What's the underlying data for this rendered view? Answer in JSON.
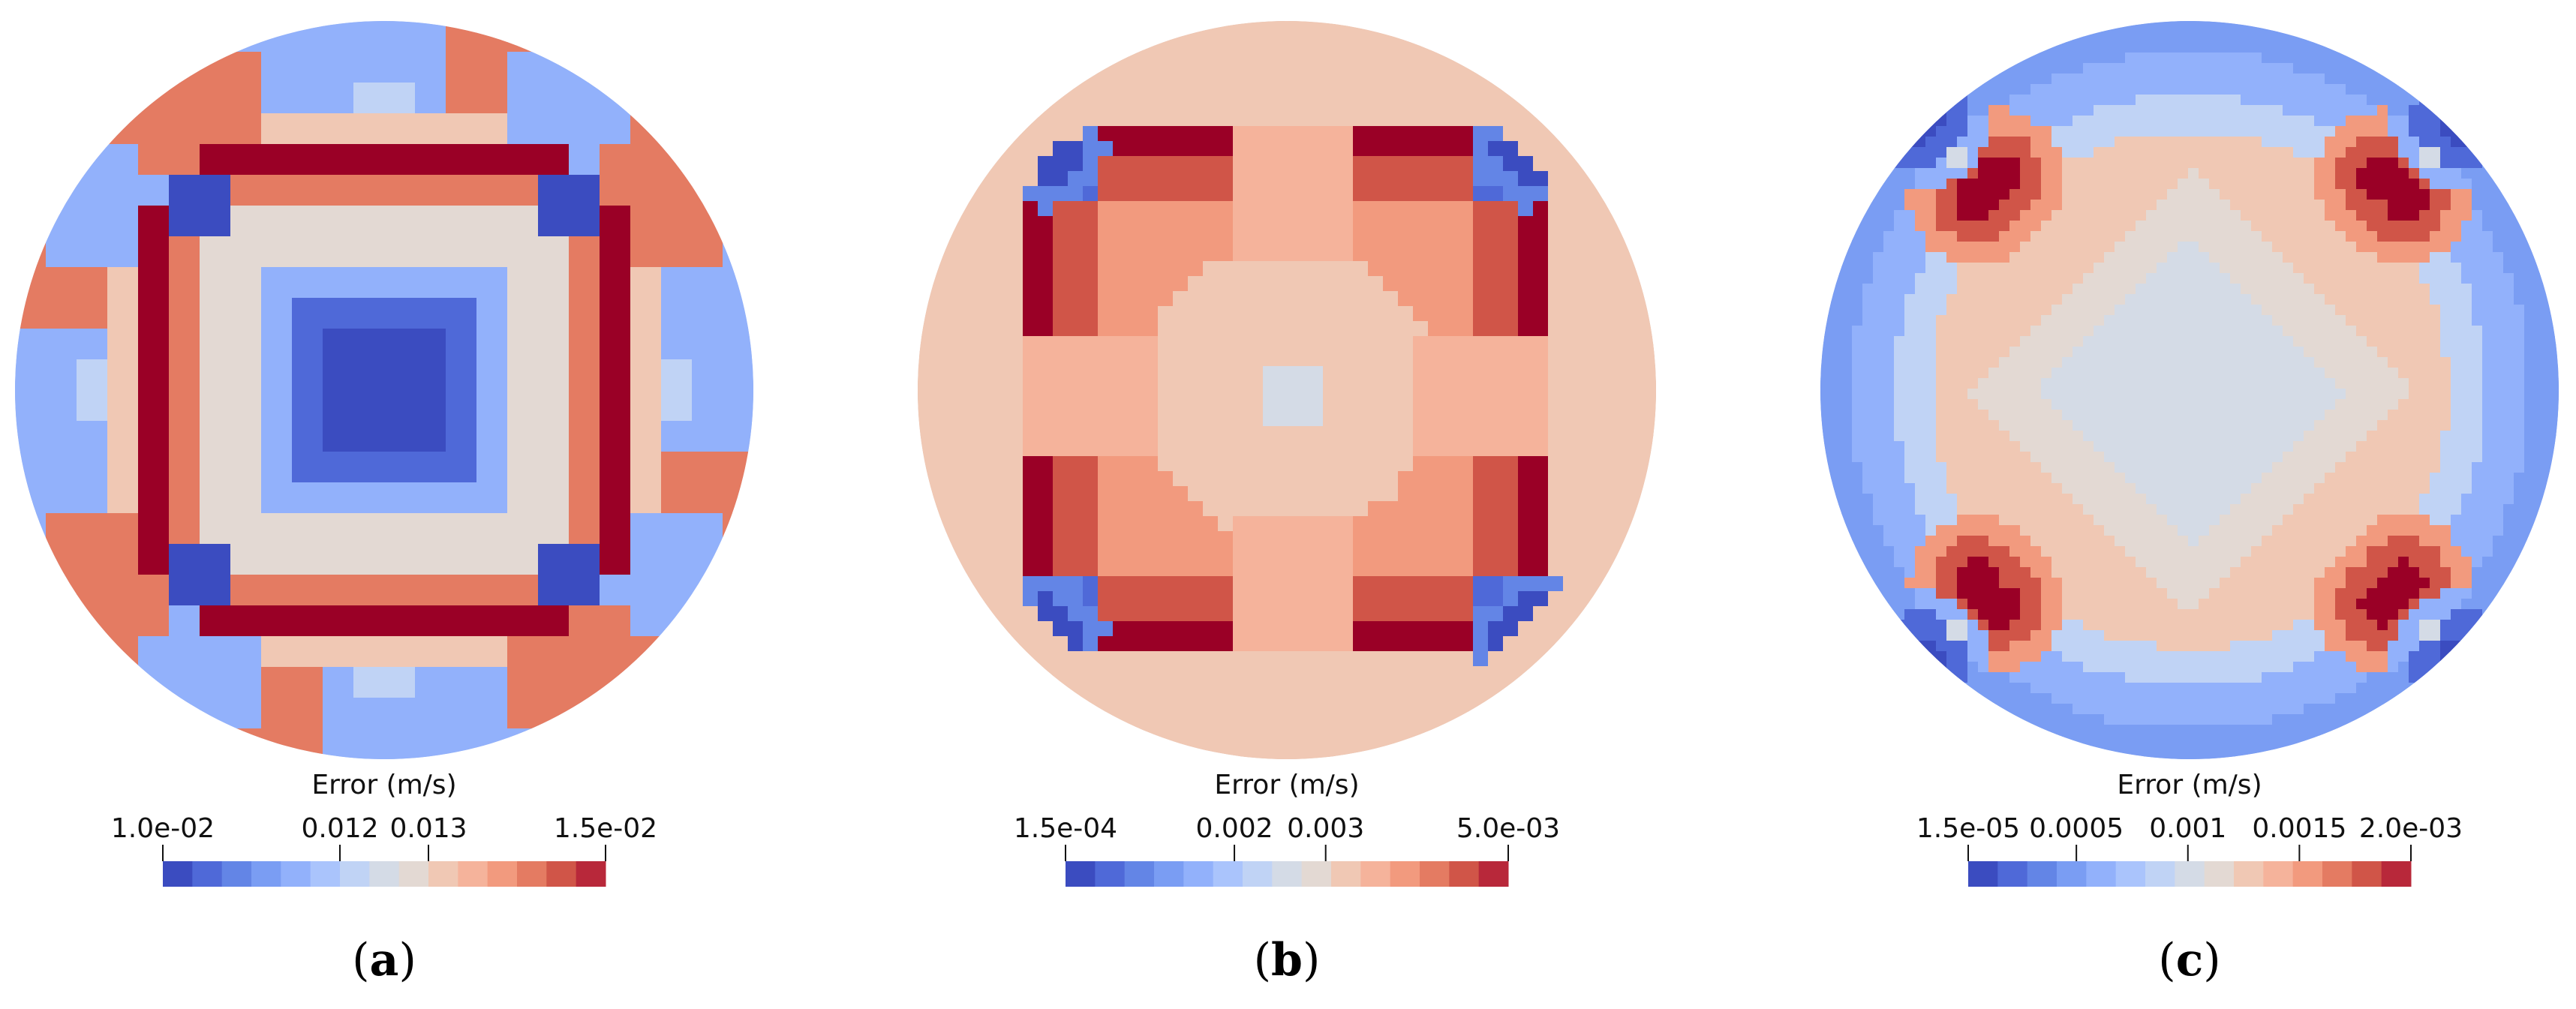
{
  "colors": {
    "palette": [
      "#3b4cc0",
      "#4f69d8",
      "#6385e6",
      "#7a9df3",
      "#92b1fb",
      "#aac4fc",
      "#c0d3f5",
      "#d4dbe6",
      "#e3d9d3",
      "#f0c8b4",
      "#f5b39b",
      "#f29a7e",
      "#e47b62",
      "#d05548",
      "#b8283a",
      "#9a0026"
    ]
  },
  "chart_data": [
    {
      "type": "heatmap",
      "panel_label": "a",
      "colorbar": {
        "title": "Error (m/s)",
        "range": [
          0.01,
          0.015
        ],
        "tick_labels": [
          "1.0e-02",
          "0.012",
          "0.013",
          "1.5e-02"
        ],
        "tick_values": [
          0.01,
          0.012,
          0.013,
          0.015
        ],
        "n_colors": 15
      }
    },
    {
      "type": "heatmap",
      "panel_label": "b",
      "colorbar": {
        "title": "Error (m/s)",
        "range": [
          0.00015,
          0.005
        ],
        "tick_labels": [
          "1.5e-04",
          "0.002",
          "0.003",
          "5.0e-03"
        ],
        "tick_values": [
          0.00015,
          0.002,
          0.003,
          0.005
        ],
        "n_colors": 15
      }
    },
    {
      "type": "heatmap",
      "panel_label": "c",
      "colorbar": {
        "title": "Error (m/s)",
        "range": [
          1.5e-05,
          0.002
        ],
        "tick_labels": [
          "1.5e-05",
          "0.0005",
          "0.001",
          "0.0015",
          "2.0e-03"
        ],
        "tick_values": [
          1.5e-05,
          0.0005,
          0.001,
          0.0015,
          0.002
        ],
        "n_colors": 15
      }
    }
  ]
}
